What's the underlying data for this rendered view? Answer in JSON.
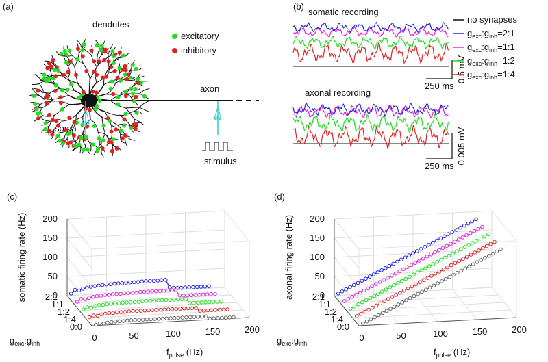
{
  "ratio_label": [
    "g",
    "exc",
    ":g",
    "inh"
  ],
  "equals": "=",
  "fpulse_label": [
    "f",
    "pulse",
    " (Hz)"
  ],
  "panel_a": {
    "panel": "(a)",
    "dendrites": "dendrites",
    "excitatory": "excitatory",
    "inhibitory": "inhibitory",
    "axon": "axon",
    "soma": "soma",
    "stimulus": "stimulus",
    "excitatory_color": "#22dd22",
    "inhibitory_color": "#dd2222"
  },
  "panel_b": {
    "panel": "(b)",
    "somatic_title": "somatic recording",
    "axonal_title": "axonal recording",
    "legend": [
      "no synapses",
      "2:1",
      "1:1",
      "1:2",
      "1:4"
    ],
    "legend_colors": [
      "#111111",
      "#2222dd",
      "#dd22dd",
      "#22dd22",
      "#dd2222"
    ],
    "somatic_scale_v": "0.5 mV",
    "somatic_scale_t": "250 ms",
    "axonal_scale_v": "0.005 mV",
    "axonal_scale_t": "250 ms"
  },
  "chart_data": [
    {
      "type": "line3d",
      "panel": "(c)",
      "zlabel": "somatic firing rate (Hz)",
      "x": [
        5,
        10,
        15,
        20,
        25,
        30,
        35,
        40,
        45,
        50,
        55,
        60,
        65,
        70,
        75,
        80,
        85,
        90,
        95,
        100,
        105,
        110,
        115,
        120,
        125,
        130,
        135,
        140,
        145,
        150,
        155,
        160,
        165,
        170,
        175,
        180
      ],
      "xlim": [
        0,
        200
      ],
      "xticks": [
        0,
        50,
        100,
        150,
        200
      ],
      "zlim": [
        0,
        200
      ],
      "zticks": [
        0,
        50,
        100,
        150,
        200
      ],
      "categories": [
        "2:1",
        "1:1",
        "1:2",
        "1:4",
        "0:0"
      ],
      "series": [
        {
          "color": "#2222dd",
          "values": [
            5,
            14,
            12,
            16,
            18,
            20,
            21,
            22,
            23,
            24,
            24,
            25,
            25,
            25,
            26,
            26,
            26,
            26,
            27,
            27,
            27,
            27,
            27,
            28,
            28,
            8,
            6,
            5,
            5,
            5,
            5,
            5,
            5,
            5,
            5,
            5
          ]
        },
        {
          "color": "#dd22dd",
          "values": [
            3,
            10,
            8,
            12,
            14,
            15,
            16,
            17,
            17,
            18,
            18,
            18,
            19,
            19,
            19,
            19,
            20,
            20,
            20,
            20,
            20,
            20,
            20,
            20,
            20,
            20,
            6,
            5,
            5,
            5,
            5,
            5,
            5,
            5,
            5,
            5
          ]
        },
        {
          "color": "#22dd22",
          "values": [
            3,
            8,
            6,
            10,
            12,
            12,
            13,
            14,
            14,
            14,
            15,
            15,
            15,
            15,
            15,
            16,
            16,
            16,
            16,
            16,
            16,
            16,
            16,
            16,
            16,
            16,
            16,
            5,
            5,
            5,
            5,
            5,
            5,
            5,
            5,
            5
          ]
        },
        {
          "color": "#dd2222",
          "values": [
            2,
            6,
            5,
            8,
            9,
            10,
            10,
            11,
            11,
            11,
            12,
            12,
            12,
            12,
            12,
            12,
            12,
            12,
            12,
            12,
            12,
            12,
            12,
            12,
            12,
            12,
            12,
            12,
            4,
            4,
            4,
            4,
            4,
            4,
            4,
            4
          ]
        },
        {
          "color": "#666666",
          "values": [
            2,
            5,
            4,
            6,
            7,
            8,
            8,
            8,
            9,
            9,
            9,
            9,
            9,
            9,
            9,
            9,
            9,
            9,
            9,
            9,
            9,
            9,
            9,
            9,
            9,
            9,
            9,
            9,
            9,
            3,
            3,
            3,
            3,
            3,
            3,
            3
          ]
        }
      ]
    },
    {
      "type": "line3d",
      "panel": "(d)",
      "zlabel": "axonal firing rate (Hz)",
      "x": [
        5,
        10,
        15,
        20,
        25,
        30,
        35,
        40,
        45,
        50,
        55,
        60,
        65,
        70,
        75,
        80,
        85,
        90,
        95,
        100,
        105,
        110,
        115,
        120,
        125,
        130,
        135,
        140,
        145,
        150,
        155,
        160,
        165,
        170,
        175,
        180
      ],
      "xlim": [
        0,
        200
      ],
      "xticks": [
        0,
        50,
        100,
        150,
        200
      ],
      "zlim": [
        0,
        200
      ],
      "zticks": [
        0,
        50,
        100,
        150,
        200
      ],
      "categories": [
        "2:1",
        "1:1",
        "1:2",
        "1:4",
        "0:0"
      ],
      "series": [
        {
          "color": "#2222dd",
          "values": [
            5,
            10,
            15,
            20,
            25,
            30,
            35,
            40,
            45,
            50,
            55,
            60,
            65,
            70,
            75,
            80,
            85,
            90,
            95,
            100,
            105,
            110,
            115,
            120,
            125,
            130,
            135,
            140,
            145,
            150,
            155,
            160,
            165,
            170,
            175,
            180
          ]
        },
        {
          "color": "#dd22dd",
          "values": [
            5,
            10,
            15,
            20,
            25,
            30,
            35,
            40,
            45,
            50,
            55,
            60,
            65,
            70,
            75,
            80,
            85,
            90,
            95,
            100,
            105,
            110,
            115,
            120,
            125,
            130,
            135,
            140,
            145,
            150,
            155,
            160,
            165,
            170,
            175,
            180
          ]
        },
        {
          "color": "#22dd22",
          "values": [
            5,
            10,
            15,
            20,
            25,
            30,
            35,
            40,
            45,
            50,
            55,
            60,
            65,
            70,
            75,
            80,
            85,
            90,
            95,
            100,
            105,
            110,
            115,
            120,
            125,
            130,
            135,
            140,
            145,
            150,
            155,
            160,
            165,
            170,
            175,
            180
          ]
        },
        {
          "color": "#dd2222",
          "values": [
            5,
            10,
            15,
            20,
            25,
            30,
            35,
            40,
            45,
            50,
            55,
            60,
            65,
            70,
            75,
            80,
            85,
            90,
            95,
            100,
            105,
            110,
            115,
            120,
            125,
            130,
            135,
            140,
            145,
            150,
            155,
            160,
            165,
            170,
            175,
            180
          ]
        },
        {
          "color": "#666666",
          "values": [
            5,
            10,
            15,
            20,
            25,
            30,
            35,
            40,
            45,
            50,
            55,
            60,
            65,
            70,
            75,
            80,
            85,
            90,
            95,
            100,
            105,
            110,
            115,
            120,
            125,
            130,
            135,
            140,
            145,
            150,
            155,
            160,
            165,
            170,
            175,
            180
          ]
        }
      ]
    }
  ]
}
